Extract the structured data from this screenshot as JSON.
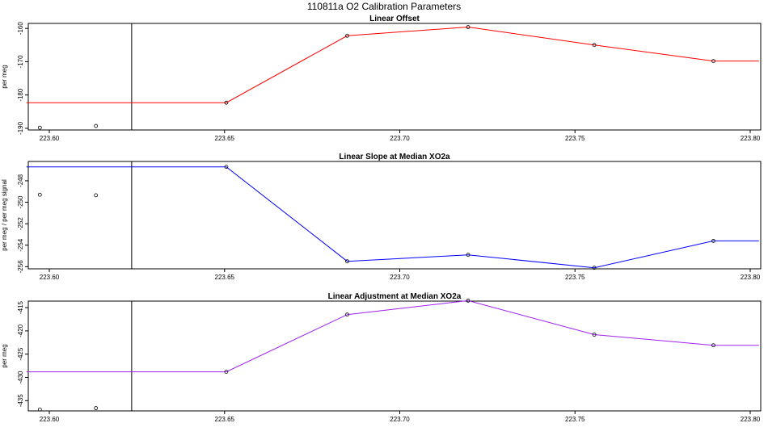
{
  "page_title": "110811a   O2 Calibration Parameters",
  "chart_data": [
    {
      "type": "line",
      "title": "Linear Offset",
      "xlabel": "",
      "ylabel": "per meg",
      "line_color": "#ff0000",
      "xlim": [
        223.594,
        223.803
      ],
      "ylim": [
        -190.5,
        -158.5
      ],
      "x_ticks": [
        223.6,
        223.65,
        223.7,
        223.75,
        223.8
      ],
      "x_tick_labels": [
        "223.60",
        "223.65",
        "223.70",
        "223.75",
        "223.80"
      ],
      "y_ticks": [
        -190,
        -180,
        -170,
        -160
      ],
      "y_tick_labels": [
        "-190",
        "-180",
        "-170",
        "-160"
      ],
      "vline_x": 223.6235,
      "line_x": [
        223.5935,
        223.6505,
        223.685,
        223.7195,
        223.7555,
        223.7895,
        223.8025
      ],
      "line_y": [
        -182.3,
        -182.3,
        -162.2,
        -159.6,
        -165.0,
        -169.8,
        -169.8
      ],
      "points_x": [
        223.5973,
        223.6133,
        223.6505,
        223.685,
        223.7195,
        223.7555,
        223.7895
      ],
      "points_y": [
        -189.8,
        -189.3,
        -182.3,
        -162.2,
        -159.6,
        -165.0,
        -169.8
      ]
    },
    {
      "type": "line",
      "title": "Linear Slope at Median XO2a",
      "xlabel": "",
      "ylabel": "per meg / per meg signal",
      "line_color": "#0000ff",
      "xlim": [
        223.594,
        223.803
      ],
      "ylim": [
        -256.2,
        -246.2
      ],
      "x_ticks": [
        223.6,
        223.65,
        223.7,
        223.75,
        223.8
      ],
      "x_tick_labels": [
        "223.60",
        "223.65",
        "223.70",
        "223.75",
        "223.80"
      ],
      "y_ticks": [
        -256,
        -254,
        -252,
        -250,
        -248
      ],
      "y_tick_labels": [
        "-256",
        "-254",
        "-252",
        "-250",
        "-248"
      ],
      "vline_x": 223.6235,
      "line_x": [
        223.5935,
        223.6505,
        223.685,
        223.7195,
        223.7555,
        223.7895,
        223.8025
      ],
      "line_y": [
        -246.7,
        -246.7,
        -255.5,
        -254.9,
        -256.1,
        -253.6,
        -253.6
      ],
      "points_x": [
        223.5973,
        223.6133,
        223.6505,
        223.685,
        223.7195,
        223.7555,
        223.7895
      ],
      "points_y": [
        -249.3,
        -249.35,
        -246.7,
        -255.5,
        -254.9,
        -256.1,
        -253.6
      ]
    },
    {
      "type": "line",
      "title": "Linear Adjustment at Median XO2a",
      "xlabel": "",
      "ylabel": "per meg",
      "line_color": "#a020f0",
      "xlim": [
        223.594,
        223.803
      ],
      "ylim": [
        -437.2,
        -413.6
      ],
      "x_ticks": [
        223.6,
        223.65,
        223.7,
        223.75,
        223.8
      ],
      "x_tick_labels": [
        "223.60",
        "223.65",
        "223.70",
        "223.75",
        "223.80"
      ],
      "y_ticks": [
        -435,
        -430,
        -425,
        -420,
        -415
      ],
      "y_tick_labels": [
        "-435",
        "-430",
        "-425",
        "-420",
        "-415"
      ],
      "vline_x": 223.6235,
      "line_x": [
        223.5935,
        223.6505,
        223.685,
        223.7195,
        223.7555,
        223.7895,
        223.8025
      ],
      "line_y": [
        -428.8,
        -428.8,
        -416.5,
        -413.5,
        -420.8,
        -423.1,
        -423.1
      ],
      "points_x": [
        223.5973,
        223.6133,
        223.6505,
        223.685,
        223.7195,
        223.7555,
        223.7895
      ],
      "points_y": [
        -436.9,
        -436.6,
        -428.8,
        -416.5,
        -413.5,
        -420.8,
        -423.1
      ]
    }
  ]
}
